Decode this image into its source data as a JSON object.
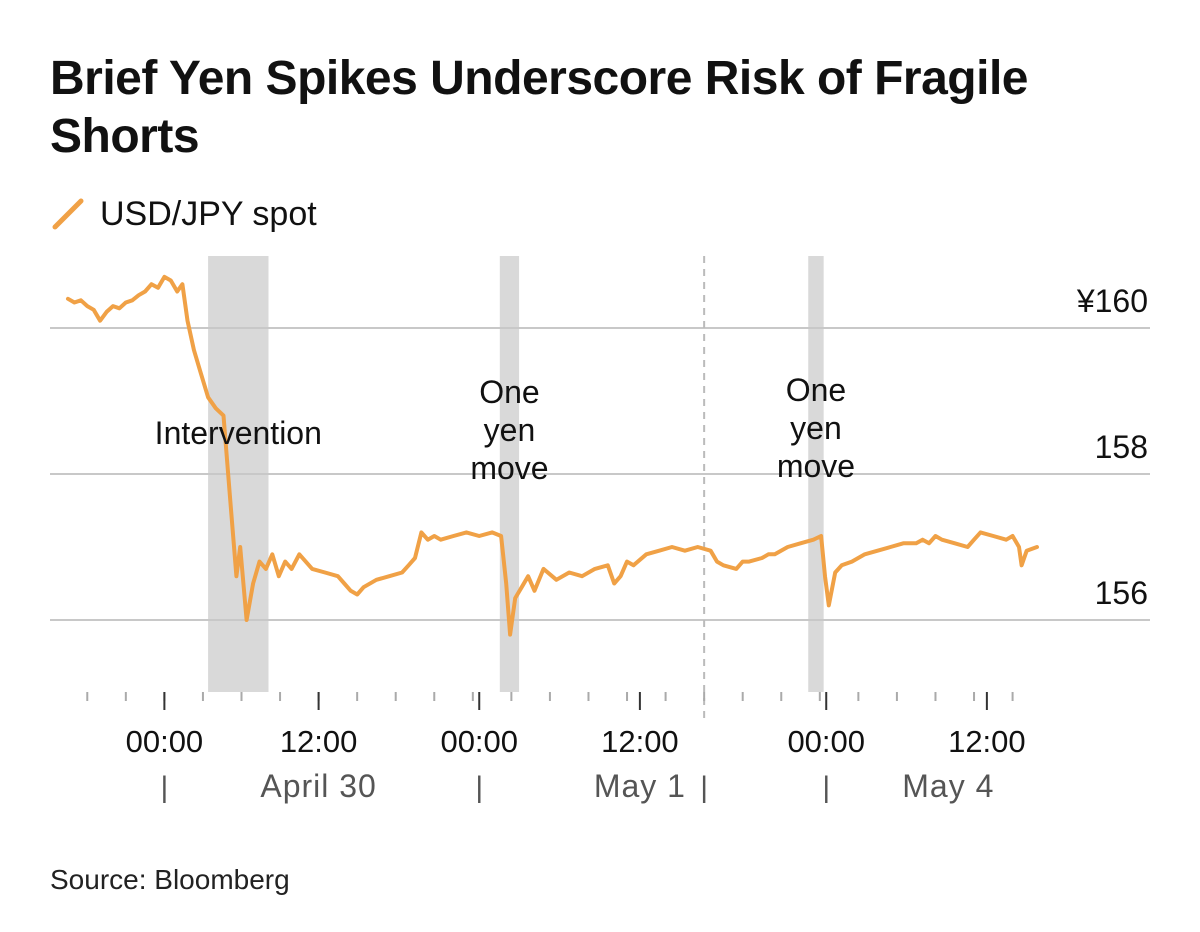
{
  "chart_data": {
    "type": "line",
    "title": "Brief Yen Spikes Underscore Risk of Fragile Shorts",
    "source": "Source: Bloomberg",
    "series": [
      {
        "name": "USD/JPY spot",
        "color": "#F0A146",
        "points": [
          [
            0,
            160.4
          ],
          [
            0.5,
            160.35
          ],
          [
            1,
            160.38
          ],
          [
            1.5,
            160.3
          ],
          [
            2,
            160.25
          ],
          [
            2.5,
            160.1
          ],
          [
            3,
            160.22
          ],
          [
            3.5,
            160.3
          ],
          [
            4,
            160.27
          ],
          [
            4.5,
            160.35
          ],
          [
            5,
            160.38
          ],
          [
            5.5,
            160.45
          ],
          [
            6,
            160.5
          ],
          [
            6.5,
            160.6
          ],
          [
            7,
            160.55
          ],
          [
            7.5,
            160.7
          ],
          [
            8,
            160.65
          ],
          [
            8.5,
            160.5
          ],
          [
            8.9,
            160.6
          ],
          [
            9.3,
            160.1
          ],
          [
            9.8,
            159.7
          ],
          [
            10.3,
            159.4
          ],
          [
            10.9,
            159.05
          ],
          [
            11.5,
            158.9
          ],
          [
            12.1,
            158.8
          ],
          [
            12.6,
            157.7
          ],
          [
            13.1,
            156.6
          ],
          [
            13.4,
            157.0
          ],
          [
            13.9,
            156.0
          ],
          [
            14.4,
            156.5
          ],
          [
            14.9,
            156.8
          ],
          [
            15.4,
            156.7
          ],
          [
            15.9,
            156.9
          ],
          [
            16.4,
            156.6
          ],
          [
            16.9,
            156.8
          ],
          [
            17.4,
            156.7
          ],
          [
            18,
            156.9
          ],
          [
            19,
            156.7
          ],
          [
            20,
            156.65
          ],
          [
            21,
            156.6
          ],
          [
            21.5,
            156.5
          ],
          [
            22,
            156.4
          ],
          [
            22.5,
            156.35
          ],
          [
            23,
            156.45
          ],
          [
            24,
            156.55
          ],
          [
            25,
            156.6
          ],
          [
            26,
            156.65
          ],
          [
            26.5,
            156.75
          ],
          [
            27,
            156.85
          ],
          [
            27.5,
            157.2
          ],
          [
            28,
            157.1
          ],
          [
            28.5,
            157.15
          ],
          [
            29,
            157.1
          ],
          [
            30,
            157.15
          ],
          [
            31,
            157.2
          ],
          [
            32,
            157.15
          ],
          [
            33,
            157.2
          ],
          [
            33.7,
            157.15
          ],
          [
            34.1,
            156.5
          ],
          [
            34.4,
            155.8
          ],
          [
            34.8,
            156.3
          ],
          [
            35.3,
            156.45
          ],
          [
            35.8,
            156.6
          ],
          [
            36.3,
            156.4
          ],
          [
            37,
            156.7
          ],
          [
            38,
            156.55
          ],
          [
            39,
            156.65
          ],
          [
            40,
            156.6
          ],
          [
            41,
            156.7
          ],
          [
            42,
            156.75
          ],
          [
            42.5,
            156.5
          ],
          [
            43,
            156.6
          ],
          [
            43.5,
            156.8
          ],
          [
            44,
            156.75
          ],
          [
            45,
            156.9
          ],
          [
            46,
            156.95
          ],
          [
            47,
            157.0
          ],
          [
            48,
            156.95
          ],
          [
            49,
            157.0
          ],
          [
            50,
            156.95
          ],
          [
            50.5,
            156.8
          ],
          [
            51,
            156.75
          ],
          [
            52,
            156.7
          ],
          [
            52.5,
            156.8
          ],
          [
            53,
            156.8
          ],
          [
            54,
            156.85
          ],
          [
            54.5,
            156.9
          ],
          [
            55,
            156.9
          ],
          [
            56,
            157.0
          ],
          [
            57,
            157.05
          ],
          [
            58,
            157.1
          ],
          [
            58.6,
            157.15
          ],
          [
            58.9,
            156.6
          ],
          [
            59.2,
            156.2
          ],
          [
            59.7,
            156.65
          ],
          [
            60.2,
            156.75
          ],
          [
            61,
            156.8
          ],
          [
            62,
            156.9
          ],
          [
            63,
            156.95
          ],
          [
            64,
            157.0
          ],
          [
            65,
            157.05
          ],
          [
            66,
            157.05
          ],
          [
            66.5,
            157.1
          ],
          [
            67,
            157.05
          ],
          [
            67.5,
            157.15
          ],
          [
            68,
            157.1
          ],
          [
            69,
            157.05
          ],
          [
            70,
            157.0
          ],
          [
            70.5,
            157.1
          ],
          [
            71,
            157.2
          ],
          [
            72,
            157.15
          ],
          [
            73,
            157.1
          ],
          [
            73.5,
            157.15
          ],
          [
            74,
            157.0
          ],
          [
            74.2,
            156.75
          ],
          [
            74.6,
            156.95
          ],
          [
            75.4,
            157.0
          ]
        ]
      }
    ],
    "y_axis": {
      "position": "right",
      "ylim": [
        155.0,
        160.6
      ],
      "ticks": [
        {
          "value": 160,
          "label": "¥160"
        },
        {
          "value": 158,
          "label": "158"
        },
        {
          "value": 156,
          "label": "156"
        }
      ]
    },
    "x_axis": {
      "xlim": [
        0,
        75.4
      ],
      "time_labels": [
        {
          "x": 7.5,
          "label": "00:00"
        },
        {
          "x": 19.5,
          "label": "12:00"
        },
        {
          "x": 32,
          "label": "00:00"
        },
        {
          "x": 44.5,
          "label": "12:00"
        },
        {
          "x": 59,
          "label": "00:00"
        },
        {
          "x": 71.5,
          "label": "12:00"
        }
      ],
      "date_labels": [
        {
          "x": 19.5,
          "label": "April 30"
        },
        {
          "x": 44.5,
          "label": "May 1"
        },
        {
          "x": 68.5,
          "label": "May 4"
        }
      ],
      "day_separators": [
        7.5,
        32,
        49.5,
        59
      ],
      "separator_glyph": "|",
      "minor_tick_step": 3,
      "major_ticks": [
        7.5,
        19.5,
        32,
        44.5,
        59,
        71.5
      ]
    },
    "weekend_break_x": 49.5,
    "grid": true,
    "highlights": [
      {
        "x0": 10.9,
        "x1": 15.6,
        "label_lines": [
          "Intervention"
        ]
      },
      {
        "x0": 33.6,
        "x1": 35.1,
        "label_lines": [
          "One",
          "yen",
          "move"
        ]
      },
      {
        "x0": 57.6,
        "x1": 58.8,
        "label_lines": [
          "One",
          "yen",
          "move"
        ]
      }
    ]
  }
}
